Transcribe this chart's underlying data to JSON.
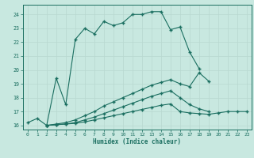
{
  "xlabel": "Humidex (Indice chaleur)",
  "bg_color": "#c8e8e0",
  "grid_color": "#b8d8d0",
  "line_color": "#1a6e60",
  "xlim": [
    -0.5,
    23.5
  ],
  "ylim": [
    15.7,
    24.7
  ],
  "yticks": [
    16,
    17,
    18,
    19,
    20,
    21,
    22,
    23,
    24
  ],
  "xticks": [
    0,
    1,
    2,
    3,
    4,
    5,
    6,
    7,
    8,
    9,
    10,
    11,
    12,
    13,
    14,
    15,
    16,
    17,
    18,
    19,
    20,
    21,
    22,
    23
  ],
  "line1_x": [
    0,
    1,
    2,
    3,
    4,
    5,
    6,
    7,
    8,
    9,
    10,
    11,
    12,
    13,
    14,
    15,
    16,
    17,
    18,
    19,
    20
  ],
  "line1_y": [
    16.2,
    16.5,
    16.0,
    19.4,
    17.5,
    22.2,
    23.0,
    22.6,
    23.5,
    23.2,
    23.4,
    24.0,
    24.0,
    24.2,
    24.2,
    22.9,
    23.1,
    21.3,
    20.1,
    null,
    null
  ],
  "line2_x": [
    2,
    3,
    4,
    5,
    6,
    7,
    8,
    9,
    10,
    11,
    12,
    13,
    14,
    15,
    16,
    17,
    18,
    19,
    20,
    21,
    22
  ],
  "line2_y": [
    16.0,
    16.1,
    16.2,
    16.4,
    16.7,
    17.0,
    17.4,
    17.7,
    18.0,
    18.3,
    18.6,
    18.9,
    19.1,
    19.3,
    19.0,
    18.8,
    19.8,
    19.2,
    null,
    null,
    null
  ],
  "line3_x": [
    2,
    3,
    4,
    5,
    6,
    7,
    8,
    9,
    10,
    11,
    12,
    13,
    14,
    15,
    16,
    17,
    18,
    19,
    20,
    21,
    22
  ],
  "line3_y": [
    16.0,
    16.05,
    16.1,
    16.2,
    16.4,
    16.6,
    16.85,
    17.1,
    17.35,
    17.6,
    17.85,
    18.1,
    18.3,
    18.5,
    18.0,
    17.5,
    17.2,
    17.0,
    null,
    null,
    null
  ],
  "line4_x": [
    2,
    3,
    4,
    5,
    6,
    7,
    8,
    9,
    10,
    11,
    12,
    13,
    14,
    15,
    16,
    17,
    18,
    19,
    20,
    21,
    22,
    23
  ],
  "line4_y": [
    16.0,
    16.05,
    16.1,
    16.15,
    16.25,
    16.4,
    16.55,
    16.7,
    16.85,
    17.0,
    17.15,
    17.3,
    17.45,
    17.55,
    17.0,
    16.9,
    16.85,
    16.8,
    16.9,
    17.0,
    17.0,
    17.0
  ]
}
